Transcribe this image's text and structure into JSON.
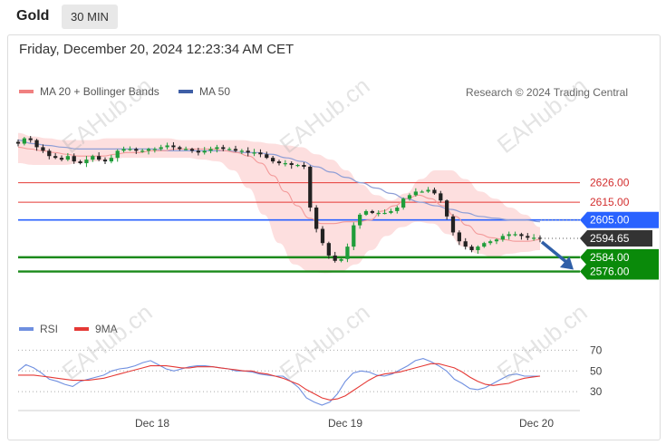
{
  "header": {
    "symbol": "Gold",
    "timeframe": "30 MIN"
  },
  "datetime": "Friday, December 20, 2024 12:23:34 AM CET",
  "legend": {
    "ma20": "MA 20 + Bollinger Bands",
    "ma50": "MA 50",
    "ma20_color": "#f08080",
    "ma50_color": "#3f5fa6"
  },
  "credit": "Research © 2024 Trading Central",
  "rsi_legend": {
    "rsi": "RSI",
    "ma9": "9MA",
    "rsi_color": "#6f8fe0",
    "ma9_color": "#e53935"
  },
  "watermark": "EAHub.cn",
  "chart_data": [
    {
      "type": "candlestick",
      "title": "Gold",
      "x_labels": [
        "Dec 18",
        "Dec 19",
        "Dec 20"
      ],
      "ylim": [
        2563,
        2660
      ],
      "current_price": "2594.65",
      "levels": [
        {
          "label": "2626.00",
          "value": 2626.0,
          "kind": "resistance",
          "color": "#e53935"
        },
        {
          "label": "2615.00",
          "value": 2615.0,
          "kind": "resistance",
          "color": "#e53935"
        },
        {
          "label": "2605.00",
          "value": 2605.0,
          "kind": "pivot",
          "color": "#2962ff"
        },
        {
          "label": "2584.00",
          "value": 2584.0,
          "kind": "support",
          "color": "#1a8a1a"
        },
        {
          "label": "2576.00",
          "value": 2576.0,
          "kind": "support",
          "color": "#1a8a1a"
        }
      ],
      "close_series": [
        2648,
        2651,
        2650,
        2646,
        2644,
        2641,
        2640,
        2639,
        2641,
        2638,
        2637,
        2639,
        2641,
        2639,
        2638,
        2640,
        2644,
        2645,
        2645,
        2644,
        2644,
        2645,
        2645,
        2646,
        2647,
        2646,
        2645,
        2645,
        2644,
        2643,
        2644,
        2645,
        2646,
        2645,
        2645,
        2644,
        2644,
        2643,
        2643,
        2642,
        2640,
        2638,
        2637,
        2637,
        2636,
        2636,
        2635,
        2612,
        2600,
        2592,
        2585,
        2582,
        2583,
        2590,
        2602,
        2608,
        2610,
        2609,
        2609,
        2609,
        2610,
        2612,
        2617,
        2619,
        2621,
        2621,
        2622,
        2620,
        2616,
        2607,
        2598,
        2593,
        2590,
        2588,
        2590,
        2592,
        2593,
        2594,
        2596,
        2597,
        2597,
        2596,
        2595,
        2595,
        2594.65
      ],
      "ma20": [
        2646,
        2645,
        2644,
        2643,
        2642,
        2641,
        2641,
        2641,
        2642,
        2643,
        2643,
        2644,
        2644,
        2645,
        2645,
        2645,
        2645,
        2644,
        2643,
        2641,
        2637,
        2630,
        2621,
        2613,
        2606,
        2603,
        2603,
        2604,
        2604,
        2605,
        2610,
        2613,
        2617,
        2619,
        2617,
        2613,
        2607,
        2602,
        2597,
        2595,
        2594,
        2593,
        2593,
        2594
      ],
      "ma50": [
        2650,
        2648,
        2647,
        2646,
        2645,
        2645,
        2645,
        2645,
        2645,
        2645,
        2644,
        2644,
        2644,
        2644,
        2644,
        2643,
        2643,
        2642,
        2640,
        2638,
        2635,
        2632,
        2629,
        2626,
        2623,
        2620,
        2617,
        2615,
        2613,
        2611,
        2609,
        2607,
        2606,
        2605,
        2605,
        2604
      ],
      "bb_upper": [
        2654,
        2652,
        2651,
        2650,
        2650,
        2650,
        2651,
        2651,
        2651,
        2651,
        2651,
        2650,
        2650,
        2650,
        2650,
        2650,
        2649,
        2648,
        2647,
        2646,
        2642,
        2639,
        2633,
        2625,
        2619,
        2616,
        2620,
        2628,
        2633,
        2633,
        2628,
        2621,
        2617,
        2612,
        2608,
        2601
      ],
      "bb_lower": [
        2637,
        2636,
        2636,
        2636,
        2637,
        2638,
        2639,
        2640,
        2640,
        2640,
        2640,
        2640,
        2639,
        2638,
        2633,
        2623,
        2608,
        2592,
        2580,
        2576,
        2575,
        2576,
        2580,
        2588,
        2596,
        2601,
        2604,
        2603,
        2597,
        2590,
        2586,
        2584,
        2586,
        2587,
        2588
      ],
      "forecast": {
        "from": 2594.65,
        "to": 2576.0,
        "direction": "down"
      }
    },
    {
      "type": "line",
      "title": "RSI",
      "ylim": [
        10,
        80
      ],
      "y_ticks": [
        70,
        50,
        30
      ],
      "series": [
        {
          "name": "RSI",
          "values": [
            50,
            56,
            53,
            48,
            42,
            40,
            37,
            35,
            40,
            42,
            44,
            46,
            50,
            52,
            53,
            55,
            58,
            60,
            56,
            52,
            50,
            52,
            54,
            55,
            55,
            54,
            53,
            52,
            50,
            50,
            49,
            47,
            46,
            45,
            45,
            40,
            34,
            24,
            20,
            17,
            20,
            28,
            40,
            48,
            50,
            49,
            46,
            45,
            47,
            51,
            55,
            60,
            62,
            59,
            55,
            50,
            42,
            38,
            33,
            32,
            34,
            38,
            42,
            46,
            47,
            45,
            45,
            45
          ]
        },
        {
          "name": "9MA",
          "values": [
            46,
            46,
            46,
            45,
            44,
            43,
            42,
            41,
            41,
            41,
            42,
            43,
            45,
            47,
            49,
            51,
            53,
            55,
            55,
            55,
            54,
            53,
            53,
            54,
            54,
            54,
            53,
            52,
            51,
            50,
            50,
            48,
            47,
            45,
            43,
            40,
            37,
            32,
            28,
            24,
            22,
            23,
            26,
            31,
            36,
            41,
            45,
            47,
            48,
            49,
            51,
            53,
            55,
            57,
            57,
            55,
            53,
            49,
            44,
            40,
            37,
            36,
            37,
            38,
            41,
            43,
            44,
            45
          ]
        }
      ]
    }
  ]
}
